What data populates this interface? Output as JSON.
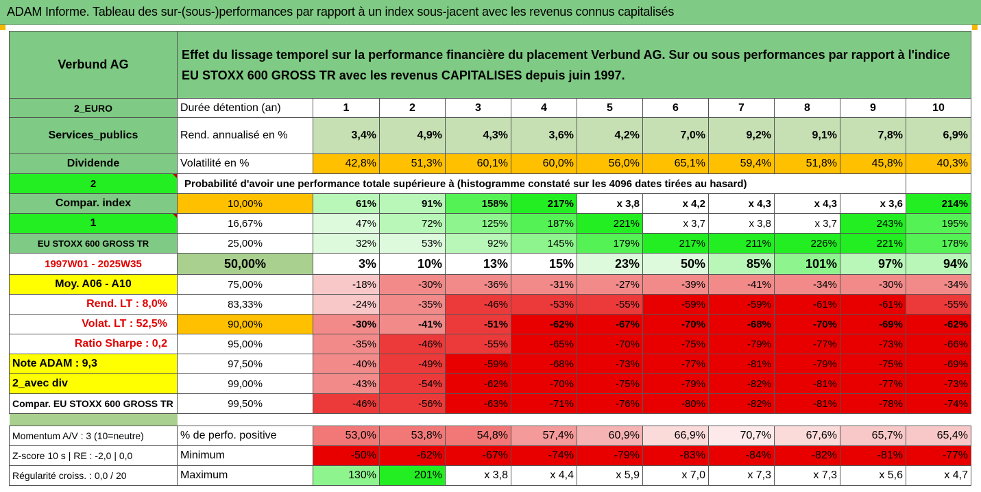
{
  "title": "ADAM Informe. Tableau des sur-(sous-)performances par rapport à un index sous-jacent avec les revenus connus capitalisés",
  "colors": {
    "title_bg": "#7fca84",
    "header_bg": "#7fca84",
    "label_green": "#7fca84",
    "bright_green": "#22ee22",
    "yellow": "#ffff00",
    "orange": "#ffc000",
    "light_green": "#c6e0b4",
    "red": "#ff0000"
  },
  "header": {
    "company": "Verbund AG",
    "description": "Effet du lissage temporel sur la performance financière du placement Verbund AG. Sur ou sous performances par rapport à l'indice EU STOXX 600 GROSS TR avec les revenus CAPITALISES depuis juin 1997."
  },
  "duration_row": {
    "left": "2_EURO",
    "label": "Durée détention (an)",
    "values": [
      "1",
      "2",
      "3",
      "4",
      "5",
      "6",
      "7",
      "8",
      "9",
      "10"
    ]
  },
  "return_row": {
    "left": "Services_publics",
    "label": "Rend. annualisé en %",
    "values": [
      "3,4%",
      "4,9%",
      "4,3%",
      "3,6%",
      "4,2%",
      "7,0%",
      "9,2%",
      "9,1%",
      "7,8%",
      "6,9%"
    ]
  },
  "volatility_row": {
    "left": "Dividende",
    "label": "Volatilité en %",
    "values": [
      "42,8%",
      "51,3%",
      "60,1%",
      "60,0%",
      "56,0%",
      "65,1%",
      "59,4%",
      "51,8%",
      "45,8%",
      "40,3%"
    ]
  },
  "probability_row": {
    "left": "2",
    "text": "Probabilité d'avoir une performance totale supérieure à (histogramme constaté sur les 4096 dates tirées au hasard)"
  },
  "grid": [
    {
      "left": "Compar. index",
      "pct": "10,00%",
      "values": [
        "61%",
        "91%",
        "158%",
        "217%",
        "x 3,8",
        "x 4,2",
        "x 4,3",
        "x 4,3",
        "x 3,6",
        "214%"
      ]
    },
    {
      "left": "1",
      "pct": "16,67%",
      "values": [
        "47%",
        "72%",
        "125%",
        "187%",
        "221%",
        "x 3,7",
        "x 3,8",
        "x 3,7",
        "243%",
        "195%"
      ]
    },
    {
      "left": "EU STOXX 600 GROSS TR",
      "pct": "25,00%",
      "values": [
        "32%",
        "53%",
        "92%",
        "145%",
        "179%",
        "217%",
        "211%",
        "226%",
        "221%",
        "178%"
      ]
    },
    {
      "left": "1997W01 - 2025W35",
      "pct": "50,00%",
      "values": [
        "3%",
        "10%",
        "13%",
        "15%",
        "23%",
        "50%",
        "85%",
        "101%",
        "97%",
        "94%"
      ]
    },
    {
      "left": "Moy. A06 - A10",
      "pct": "75,00%",
      "values": [
        "-18%",
        "-30%",
        "-36%",
        "-31%",
        "-27%",
        "-39%",
        "-41%",
        "-34%",
        "-30%",
        "-34%"
      ]
    },
    {
      "left": "Rend. LT :   8,0%",
      "pct": "83,33%",
      "values": [
        "-24%",
        "-35%",
        "-46%",
        "-53%",
        "-55%",
        "-59%",
        "-59%",
        "-61%",
        "-61%",
        "-55%"
      ]
    },
    {
      "left": "Volat. LT :   52,5%",
      "pct": "90,00%",
      "values": [
        "-30%",
        "-41%",
        "-51%",
        "-62%",
        "-67%",
        "-70%",
        "-68%",
        "-70%",
        "-69%",
        "-62%"
      ]
    },
    {
      "left": "Ratio Sharpe :   0,2",
      "pct": "95,00%",
      "values": [
        "-35%",
        "-46%",
        "-55%",
        "-65%",
        "-70%",
        "-75%",
        "-79%",
        "-77%",
        "-73%",
        "-66%"
      ]
    },
    {
      "left": "Note ADAM : 9,3",
      "pct": "97,50%",
      "values": [
        "-40%",
        "-49%",
        "-59%",
        "-68%",
        "-73%",
        "-77%",
        "-81%",
        "-79%",
        "-75%",
        "-69%"
      ]
    },
    {
      "left": "2_avec div",
      "pct": "99,00%",
      "values": [
        "-43%",
        "-54%",
        "-62%",
        "-70%",
        "-75%",
        "-79%",
        "-82%",
        "-81%",
        "-77%",
        "-73%"
      ]
    },
    {
      "left": "Compar. EU STOXX 600 GROSS TR",
      "pct": "99,50%",
      "values": [
        "-46%",
        "-56%",
        "-63%",
        "-71%",
        "-76%",
        "-80%",
        "-82%",
        "-81%",
        "-78%",
        "-74%"
      ]
    }
  ],
  "stats": [
    {
      "left": "Momentum A/V : 3 (10=neutre)",
      "label": "% de perfo. positive",
      "values": [
        "53,0%",
        "53,8%",
        "54,8%",
        "57,4%",
        "60,9%",
        "66,9%",
        "70,7%",
        "67,6%",
        "65,7%",
        "65,4%"
      ]
    },
    {
      "left": "Z-score 10 s  |  RE : -2,0  |  0,0",
      "label": "Minimum",
      "values": [
        "-50%",
        "-62%",
        "-67%",
        "-74%",
        "-79%",
        "-83%",
        "-84%",
        "-82%",
        "-81%",
        "-77%"
      ]
    },
    {
      "left": "Régularité croiss. : 0,0 / 20",
      "label": "Maximum",
      "values": [
        "130%",
        "201%",
        "x 3,8",
        "x 4,4",
        "x 5,9",
        "x 7,0",
        "x 7,3",
        "x 7,3",
        "x 5,6",
        "x 4,7"
      ]
    }
  ]
}
